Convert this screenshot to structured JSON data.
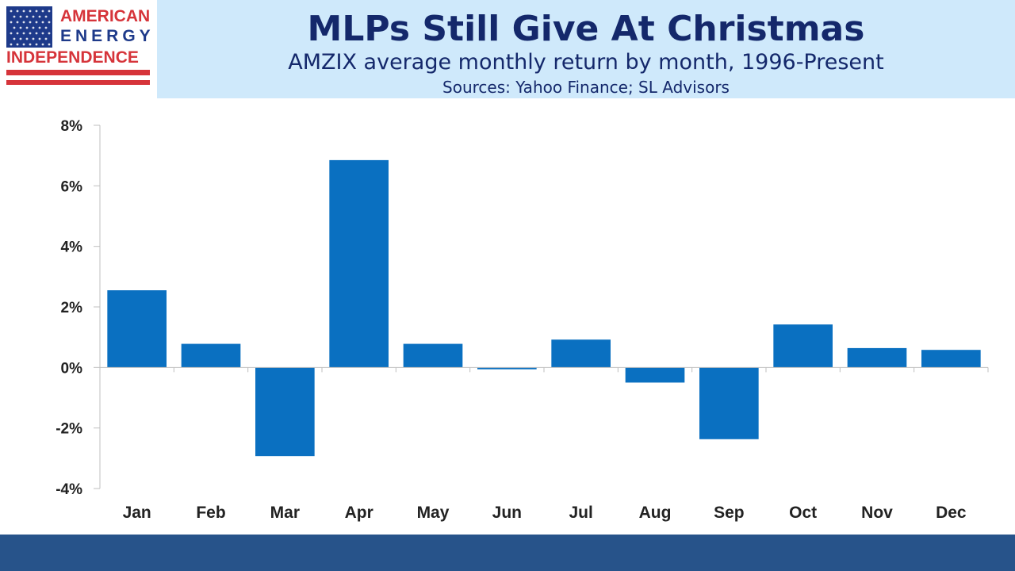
{
  "logo": {
    "line1": "AMERICAN",
    "line2": "ENERGY",
    "line3": "INDEPENDENCE",
    "red": "#d6343a",
    "blue": "#1e3a8a"
  },
  "header": {
    "title": "MLPs Still Give At Christmas",
    "subtitle": "AMZIX average monthly return by month, 1996-Present",
    "source": "Sources: Yahoo Finance; SL Advisors",
    "background": "#cfe9fb",
    "text_color": "#14286b"
  },
  "footer": {
    "color": "#27538a"
  },
  "chart_data": {
    "type": "bar",
    "categories": [
      "Jan",
      "Feb",
      "Mar",
      "Apr",
      "May",
      "Jun",
      "Jul",
      "Aug",
      "Sep",
      "Oct",
      "Nov",
      "Dec"
    ],
    "values": [
      2.55,
      0.78,
      -2.93,
      6.85,
      0.78,
      -0.06,
      0.92,
      -0.5,
      -2.37,
      1.42,
      0.64,
      0.58
    ],
    "ylim": [
      -4,
      8
    ],
    "yticks": [
      -4,
      -2,
      0,
      2,
      4,
      6,
      8
    ],
    "ytick_labels": [
      "-4%",
      "-2%",
      "0%",
      "2%",
      "4%",
      "6%",
      "8%"
    ],
    "bar_color": "#0a70c1",
    "grid": false
  }
}
